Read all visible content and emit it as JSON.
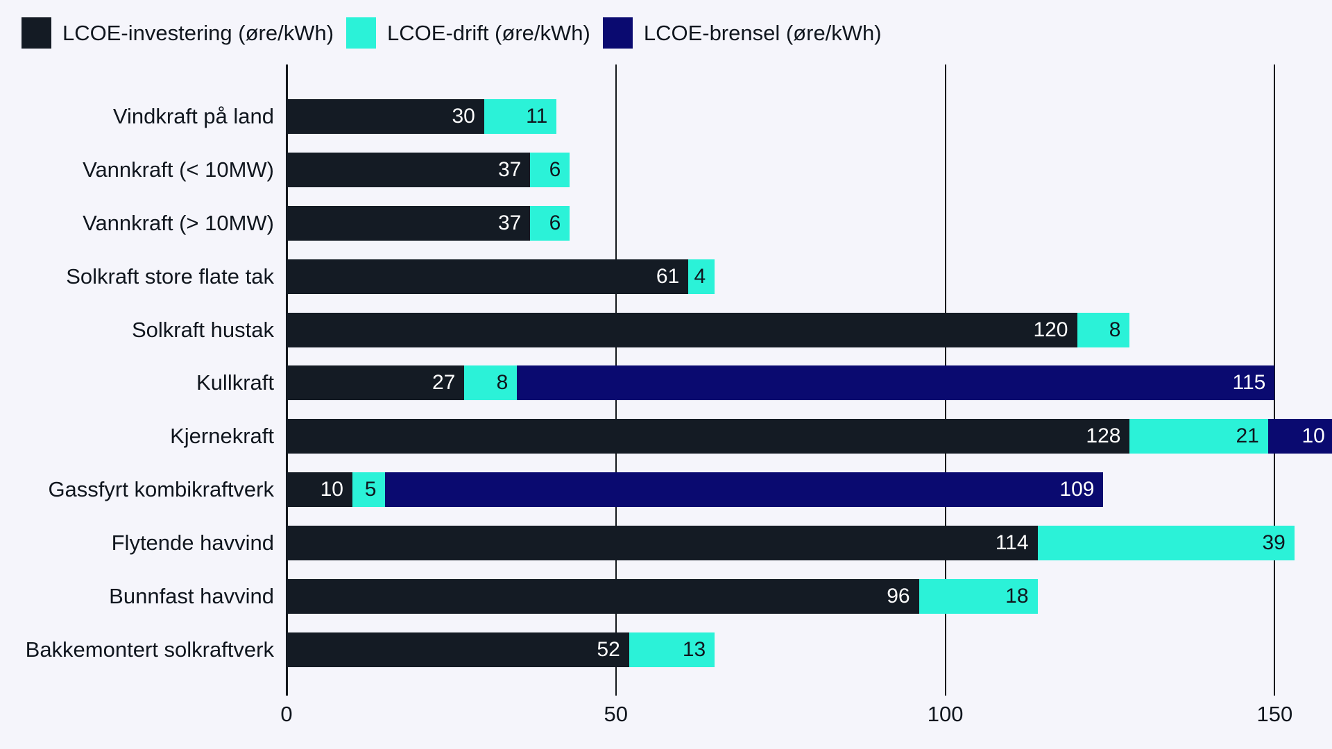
{
  "colors": {
    "background": "#f5f5fb",
    "gridline": "#14181d",
    "text": "#10161e",
    "investering": "#141b24",
    "drift": "#2bf2d8",
    "brensel": "#0a0a70"
  },
  "legend": {
    "items": [
      {
        "label": "LCOE-investering (øre/kWh)",
        "color": "#141b24"
      },
      {
        "label": "LCOE-drift (øre/kWh)",
        "color": "#2bf2d8"
      },
      {
        "label": "LCOE-brensel (øre/kWh)",
        "color": "#0a0a70"
      }
    ]
  },
  "chart_data": {
    "type": "bar",
    "orientation": "horizontal",
    "stacked": true,
    "title": "",
    "xlabel": "",
    "ylabel": "",
    "categories": [
      "Vindkraft på land",
      "Vannkraft (< 10MW)",
      "Vannkraft (> 10MW)",
      "Solkraft store flate tak",
      "Solkraft hustak",
      "Kullkraft",
      "Kjernekraft",
      "Gassfyrt kombikraftverk",
      "Flytende havvind",
      "Bunnfast havvind",
      "Bakkemontert solkraftverk"
    ],
    "series": [
      {
        "name": "LCOE-investering (øre/kWh)",
        "color": "#141b24",
        "value_text_color": "#ffffff",
        "values": [
          30,
          37,
          37,
          61,
          120,
          27,
          128,
          10,
          114,
          96,
          52
        ]
      },
      {
        "name": "LCOE-drift (øre/kWh)",
        "color": "#2bf2d8",
        "value_text_color": "#10161e",
        "values": [
          11,
          6,
          6,
          4,
          8,
          8,
          21,
          5,
          39,
          18,
          13
        ]
      },
      {
        "name": "LCOE-brensel (øre/kWh)",
        "color": "#0a0a70",
        "value_text_color": "#ffffff",
        "values": [
          null,
          null,
          null,
          null,
          null,
          115,
          10,
          109,
          null,
          null,
          null
        ]
      }
    ],
    "x_ticks": [
      "0",
      "50",
      "100",
      "150"
    ],
    "x_tick_values": [
      0,
      50,
      100,
      150
    ],
    "xlim": [
      0,
      158.7
    ],
    "grid": true,
    "gridlines": "vertical",
    "legend_position": "top-left",
    "value_labels": "inside-end"
  }
}
